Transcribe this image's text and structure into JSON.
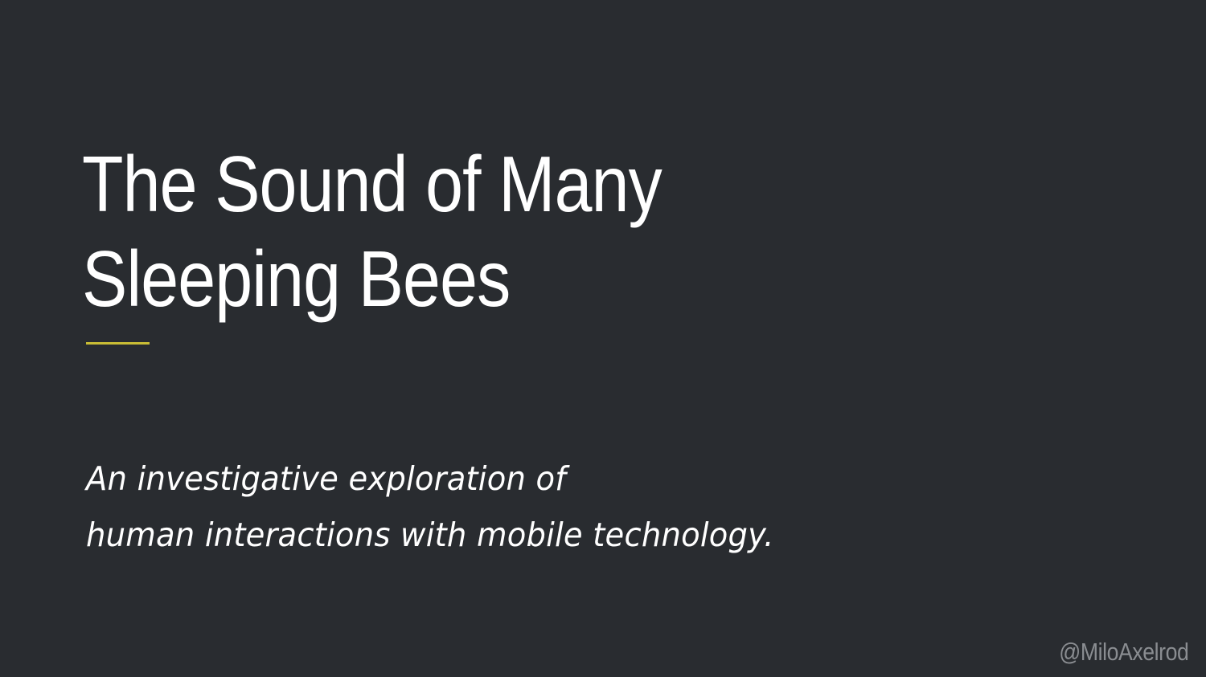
{
  "slide": {
    "title_lines": [
      "The Sound of Many",
      "Sleeping Bees"
    ],
    "subtitle_lines": [
      "An investigative exploration of",
      "human interactions with mobile technology."
    ],
    "handle": "@MiloAxelrod"
  },
  "colors": {
    "background": "#292c30",
    "title_text": "#ffffff",
    "subtitle_text": "#ffffff",
    "accent_rule": "#c9bd35",
    "handle_text": "#8a8d91"
  }
}
